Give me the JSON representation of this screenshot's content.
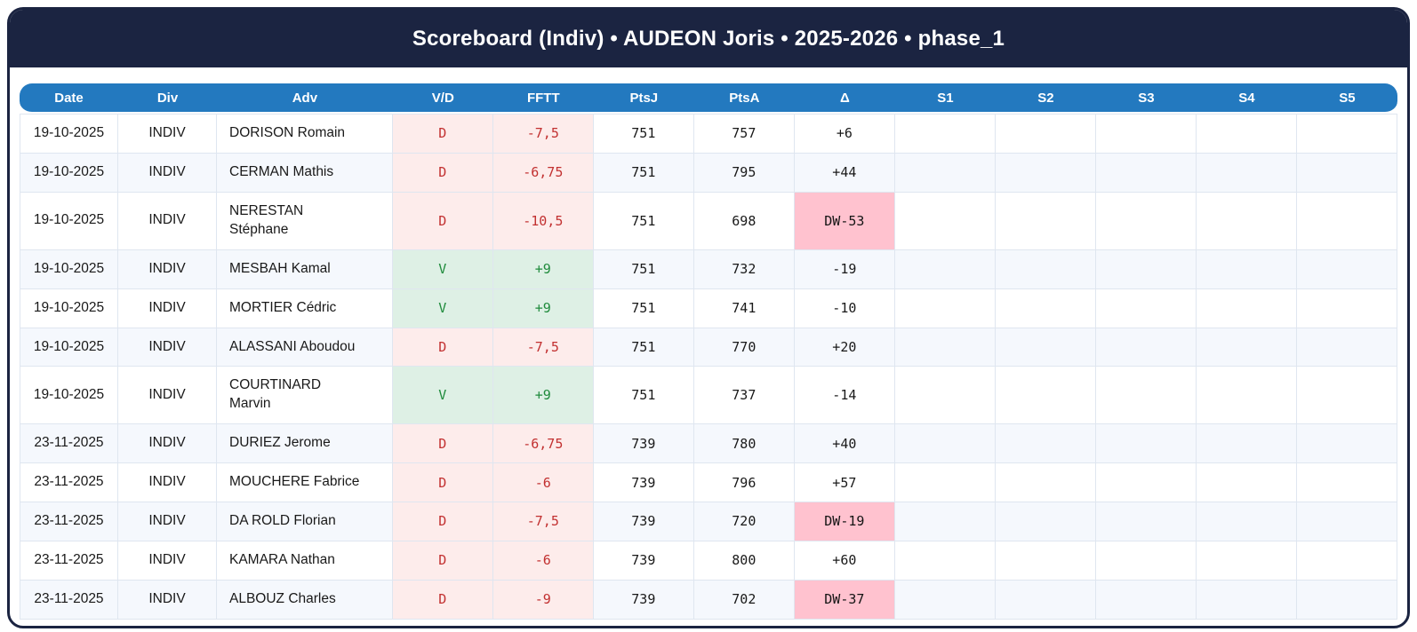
{
  "header": {
    "title": "Scoreboard (Indiv) • AUDEON Joris • 2025-2026 • phase_1"
  },
  "colors": {
    "titlebar_bg": "#1b2441",
    "table_header_bg": "#2379bf",
    "row_stripe": "#f5f8fd",
    "loss_bg": "#fdeceb",
    "loss_text": "#c23030",
    "win_bg": "#def0e5",
    "win_text": "#1f8b3c",
    "dw_bg": "#ffc2cf",
    "border": "#dfe6f0"
  },
  "table": {
    "columns": [
      "Date",
      "Div",
      "Adv",
      "V/D",
      "FFTT",
      "PtsJ",
      "PtsA",
      "Δ",
      "S1",
      "S2",
      "S3",
      "S4",
      "S5"
    ],
    "keys": [
      "date",
      "div",
      "adv",
      "vd",
      "fftt",
      "ptsj",
      "ptsa",
      "delta",
      "s1",
      "s2",
      "s3",
      "s4",
      "s5"
    ],
    "rows": [
      {
        "date": "19-10-2025",
        "div": "INDIV",
        "adv": "DORISON Romain",
        "vd": "D",
        "fftt": "-7,5",
        "ptsj": "751",
        "ptsa": "757",
        "delta": "+6",
        "s1": "",
        "s2": "",
        "s3": "",
        "s4": "",
        "s5": ""
      },
      {
        "date": "19-10-2025",
        "div": "INDIV",
        "adv": "CERMAN Mathis",
        "vd": "D",
        "fftt": "-6,75",
        "ptsj": "751",
        "ptsa": "795",
        "delta": "+44",
        "s1": "",
        "s2": "",
        "s3": "",
        "s4": "",
        "s5": ""
      },
      {
        "date": "19-10-2025",
        "div": "INDIV",
        "adv": "NERESTAN\nStéphane",
        "vd": "D",
        "fftt": "-10,5",
        "ptsj": "751",
        "ptsa": "698",
        "delta": "DW-53",
        "s1": "",
        "s2": "",
        "s3": "",
        "s4": "",
        "s5": ""
      },
      {
        "date": "19-10-2025",
        "div": "INDIV",
        "adv": "MESBAH Kamal",
        "vd": "V",
        "fftt": "+9",
        "ptsj": "751",
        "ptsa": "732",
        "delta": "-19",
        "s1": "",
        "s2": "",
        "s3": "",
        "s4": "",
        "s5": ""
      },
      {
        "date": "19-10-2025",
        "div": "INDIV",
        "adv": "MORTIER Cédric",
        "vd": "V",
        "fftt": "+9",
        "ptsj": "751",
        "ptsa": "741",
        "delta": "-10",
        "s1": "",
        "s2": "",
        "s3": "",
        "s4": "",
        "s5": ""
      },
      {
        "date": "19-10-2025",
        "div": "INDIV",
        "adv": "ALASSANI Aboudou",
        "vd": "D",
        "fftt": "-7,5",
        "ptsj": "751",
        "ptsa": "770",
        "delta": "+20",
        "s1": "",
        "s2": "",
        "s3": "",
        "s4": "",
        "s5": ""
      },
      {
        "date": "19-10-2025",
        "div": "INDIV",
        "adv": "COURTINARD\nMarvin",
        "vd": "V",
        "fftt": "+9",
        "ptsj": "751",
        "ptsa": "737",
        "delta": "-14",
        "s1": "",
        "s2": "",
        "s3": "",
        "s4": "",
        "s5": ""
      },
      {
        "date": "23-11-2025",
        "div": "INDIV",
        "adv": "DURIEZ Jerome",
        "vd": "D",
        "fftt": "-6,75",
        "ptsj": "739",
        "ptsa": "780",
        "delta": "+40",
        "s1": "",
        "s2": "",
        "s3": "",
        "s4": "",
        "s5": ""
      },
      {
        "date": "23-11-2025",
        "div": "INDIV",
        "adv": "MOUCHERE Fabrice",
        "vd": "D",
        "fftt": "-6",
        "ptsj": "739",
        "ptsa": "796",
        "delta": "+57",
        "s1": "",
        "s2": "",
        "s3": "",
        "s4": "",
        "s5": ""
      },
      {
        "date": "23-11-2025",
        "div": "INDIV",
        "adv": "DA ROLD Florian",
        "vd": "D",
        "fftt": "-7,5",
        "ptsj": "739",
        "ptsa": "720",
        "delta": "DW-19",
        "s1": "",
        "s2": "",
        "s3": "",
        "s4": "",
        "s5": ""
      },
      {
        "date": "23-11-2025",
        "div": "INDIV",
        "adv": "KAMARA Nathan",
        "vd": "D",
        "fftt": "-6",
        "ptsj": "739",
        "ptsa": "800",
        "delta": "+60",
        "s1": "",
        "s2": "",
        "s3": "",
        "s4": "",
        "s5": ""
      },
      {
        "date": "23-11-2025",
        "div": "INDIV",
        "adv": "ALBOUZ Charles",
        "vd": "D",
        "fftt": "-9",
        "ptsj": "739",
        "ptsa": "702",
        "delta": "DW-37",
        "s1": "",
        "s2": "",
        "s3": "",
        "s4": "",
        "s5": ""
      }
    ]
  }
}
